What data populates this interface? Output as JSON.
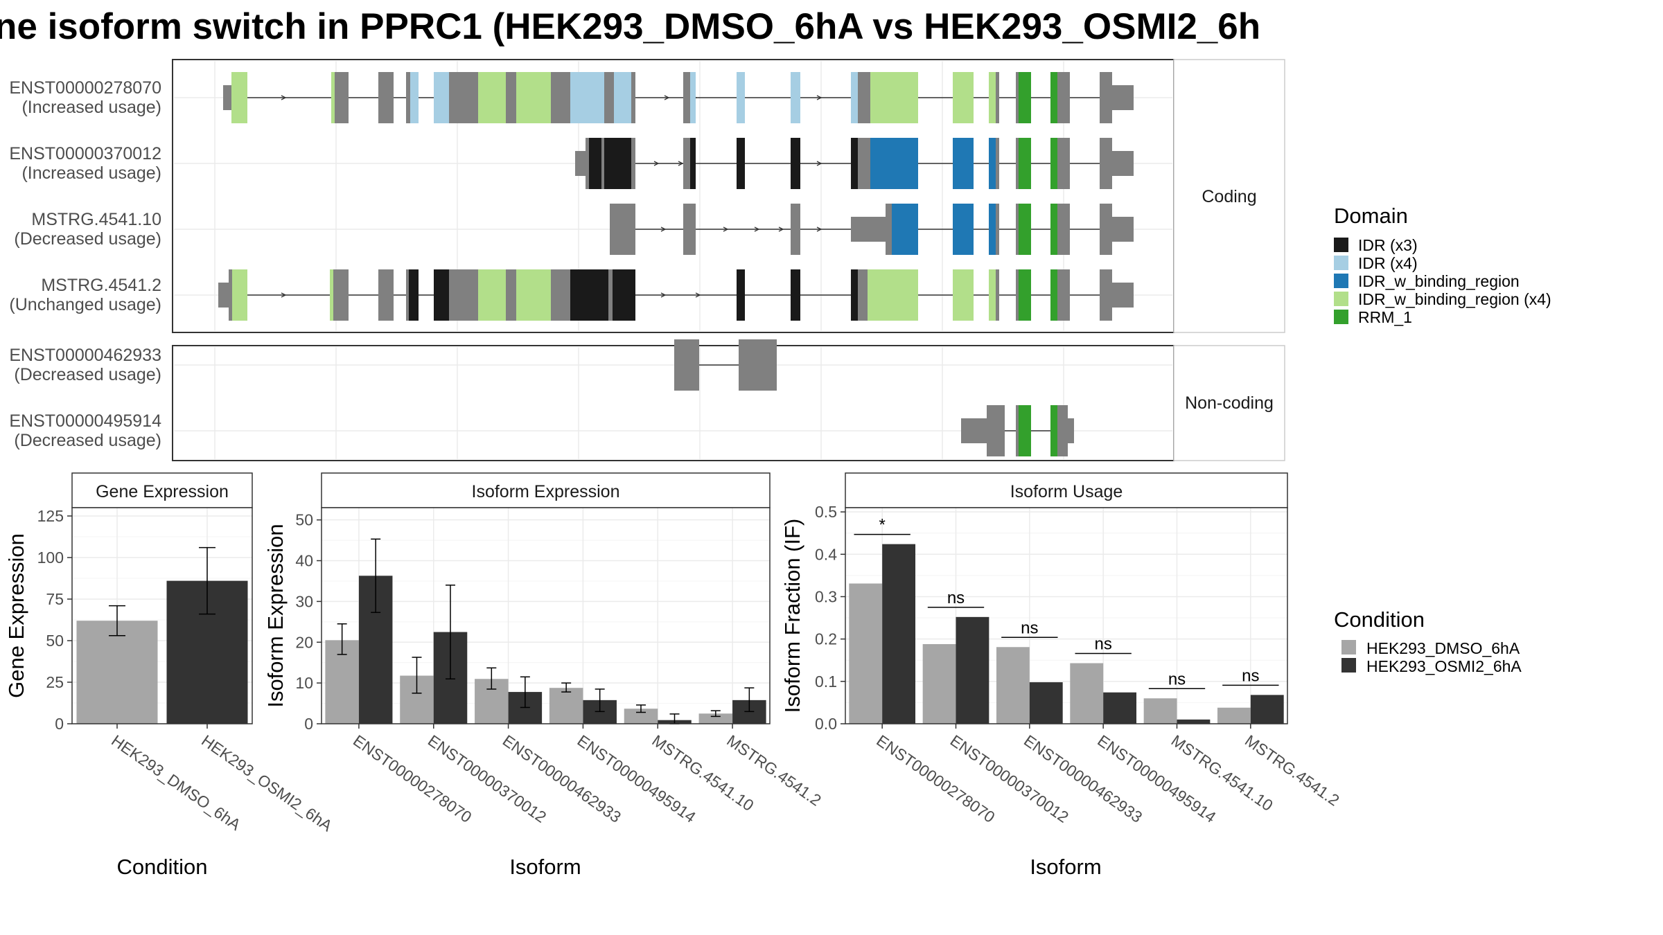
{
  "title": "ne isoform switch in PPRC1 (HEK293_DMSO_6hA vs HEK293_OSMI2_6h",
  "structure": {
    "coding_label": "Coding",
    "noncoding_label": "Non-coding",
    "coding": [
      {
        "id": "ENST00000278070",
        "usage": "(Increased usage)"
      },
      {
        "id": "ENST00000370012",
        "usage": "(Increased usage)"
      },
      {
        "id": "MSTRG.4541.10",
        "usage": "(Decreased usage)"
      },
      {
        "id": "MSTRG.4541.2",
        "usage": "(Unchanged usage)"
      }
    ],
    "noncoding": [
      {
        "id": "ENST00000462933",
        "usage": "(Decreased usage)"
      },
      {
        "id": "ENST00000495914",
        "usage": "(Decreased usage)"
      }
    ]
  },
  "domain_legend": {
    "title": "Domain",
    "items": [
      {
        "label": "IDR (x3)",
        "color": "#1a1a1a"
      },
      {
        "label": "IDR (x4)",
        "color": "#a6cee3"
      },
      {
        "label": "IDR_w_binding_region",
        "color": "#1f78b4"
      },
      {
        "label": "IDR_w_binding_region (x4)",
        "color": "#b2df8a"
      },
      {
        "label": "RRM_1",
        "color": "#33a02c"
      }
    ]
  },
  "condition_legend": {
    "title": "Condition",
    "items": [
      {
        "label": "HEK293_DMSO_6hA",
        "color": "#a6a6a6"
      },
      {
        "label": "HEK293_OSMI2_6hA",
        "color": "#333333"
      }
    ]
  },
  "colors": {
    "dmso": "#a6a6a6",
    "osmi": "#333333",
    "exon": "#808080"
  },
  "chart_data": [
    {
      "type": "bar",
      "title": "Gene Expression",
      "xlabel": "Condition",
      "ylabel": "Gene Expression",
      "ylim": [
        0,
        130
      ],
      "yticks": [
        0,
        25,
        50,
        75,
        100,
        125
      ],
      "categories": [
        "HEK293_DMSO_6hA",
        "HEK293_OSMI2_6hA"
      ],
      "values": [
        62,
        86
      ],
      "errors": [
        [
          53,
          71
        ],
        [
          66,
          106
        ]
      ]
    },
    {
      "type": "bar",
      "title": "Isoform Expression",
      "xlabel": "Isoform",
      "ylabel": "Isoform Expression",
      "ylim": [
        0,
        53
      ],
      "yticks": [
        0,
        10,
        20,
        30,
        40,
        50
      ],
      "categories": [
        "ENST00000278070",
        "ENST00000370012",
        "ENST00000462933",
        "ENST00000495914",
        "MSTRG.4541.10",
        "MSTRG.4541.2"
      ],
      "series": [
        {
          "name": "HEK293_DMSO_6hA",
          "values": [
            20.5,
            11.8,
            11.0,
            8.8,
            3.7,
            2.5
          ],
          "errors": [
            [
              17,
              24.5
            ],
            [
              7.5,
              16.3
            ],
            [
              8.5,
              13.7
            ],
            [
              7.8,
              10.0
            ],
            [
              2.8,
              4.6
            ],
            [
              1.8,
              3.2
            ]
          ]
        },
        {
          "name": "HEK293_OSMI2_6hA",
          "values": [
            36.3,
            22.5,
            7.8,
            5.8,
            0.9,
            5.8
          ],
          "errors": [
            [
              27.3,
              45.3
            ],
            [
              11.0,
              34.0
            ],
            [
              4.0,
              11.5
            ],
            [
              3.0,
              8.5
            ],
            [
              0.0,
              2.4
            ],
            [
              3.0,
              8.8
            ]
          ]
        }
      ]
    },
    {
      "type": "bar",
      "title": "Isoform Usage",
      "xlabel": "Isoform",
      "ylabel": "Isoform Fraction (IF)",
      "ylim": [
        0,
        0.51
      ],
      "yticks": [
        0.0,
        0.1,
        0.2,
        0.3,
        0.4,
        0.5
      ],
      "categories": [
        "ENST00000278070",
        "ENST00000370012",
        "ENST00000462933",
        "ENST00000495914",
        "MSTRG.4541.10",
        "MSTRG.4541.2"
      ],
      "series": [
        {
          "name": "HEK293_DMSO_6hA",
          "values": [
            0.331,
            0.188,
            0.181,
            0.143,
            0.06,
            0.038
          ]
        },
        {
          "name": "HEK293_OSMI2_6hA",
          "values": [
            0.424,
            0.252,
            0.098,
            0.074,
            0.01,
            0.068
          ]
        }
      ],
      "significance": [
        "*",
        "ns",
        "ns",
        "ns",
        "ns",
        "ns"
      ]
    }
  ]
}
